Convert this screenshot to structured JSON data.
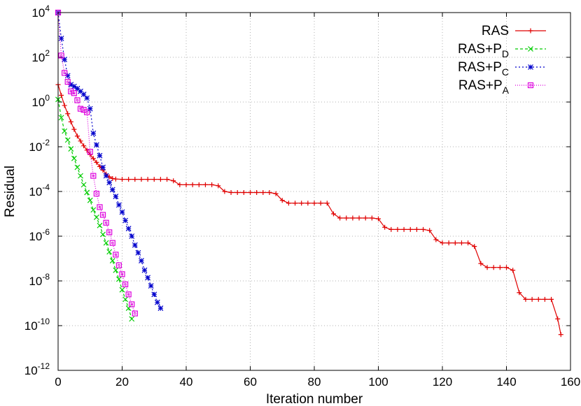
{
  "chart_data": {
    "type": "line",
    "title": "",
    "xlabel": "Iteration number",
    "ylabel": "Residual",
    "xlim": [
      0,
      160
    ],
    "ylim_log10": [
      -12,
      4
    ],
    "y_scale": "log",
    "grid": true,
    "legend_position": "top-right",
    "x_ticks": [
      "0",
      "20",
      "40",
      "60",
      "80",
      "100",
      "120",
      "140",
      "160"
    ],
    "y_ticks": [
      {
        "base": "10",
        "exp": "-12"
      },
      {
        "base": "10",
        "exp": "-10"
      },
      {
        "base": "10",
        "exp": "-8"
      },
      {
        "base": "10",
        "exp": "-6"
      },
      {
        "base": "10",
        "exp": "-4"
      },
      {
        "base": "10",
        "exp": "-2"
      },
      {
        "base": "10",
        "exp": "0"
      },
      {
        "base": "10",
        "exp": "2"
      },
      {
        "base": "10",
        "exp": "4"
      }
    ],
    "series": [
      {
        "name": "RAS",
        "name_sub": "",
        "color": "#e00000",
        "marker": "plus",
        "dash": "",
        "x": [
          0,
          1,
          2,
          3,
          4,
          5,
          6,
          7,
          8,
          9,
          10,
          11,
          12,
          13,
          14,
          15,
          16,
          17,
          18,
          20,
          22,
          24,
          26,
          28,
          30,
          32,
          34,
          36,
          38,
          40,
          42,
          44,
          46,
          48,
          50,
          52,
          54,
          56,
          58,
          60,
          62,
          64,
          66,
          68,
          70,
          72,
          74,
          76,
          78,
          80,
          82,
          84,
          86,
          88,
          90,
          92,
          94,
          96,
          98,
          100,
          102,
          104,
          106,
          108,
          110,
          112,
          114,
          116,
          118,
          120,
          122,
          124,
          126,
          128,
          130,
          132,
          134,
          136,
          138,
          140,
          142,
          144,
          146,
          148,
          150,
          152,
          154,
          156,
          157
        ],
        "y": [
          6,
          2,
          0.7,
          0.3,
          0.13,
          0.06,
          0.03,
          0.018,
          0.011,
          0.007,
          0.0045,
          0.003,
          0.002,
          0.0013,
          0.0009,
          0.0006,
          0.00045,
          0.00038,
          0.00036,
          0.00035,
          0.00035,
          0.00035,
          0.00035,
          0.00035,
          0.00035,
          0.00035,
          0.00035,
          0.0003,
          0.0002,
          0.0002,
          0.0002,
          0.0002,
          0.0002,
          0.0002,
          0.00018,
          0.0001,
          9e-05,
          9e-05,
          9e-05,
          9e-05,
          9e-05,
          9e-05,
          9e-05,
          8e-05,
          4e-05,
          3e-05,
          3e-05,
          3e-05,
          3e-05,
          3e-05,
          3e-05,
          3e-05,
          1e-05,
          6.5e-06,
          6.5e-06,
          6.5e-06,
          6.5e-06,
          6.5e-06,
          6.5e-06,
          6e-06,
          2.5e-06,
          2e-06,
          2e-06,
          2e-06,
          2e-06,
          2e-06,
          2e-06,
          1.8e-06,
          7e-07,
          5e-07,
          5e-07,
          5e-07,
          5e-07,
          5e-07,
          3.5e-07,
          6e-08,
          4e-08,
          4e-08,
          4e-08,
          4e-08,
          3e-08,
          3e-09,
          1.5e-09,
          1.5e-09,
          1.5e-09,
          1.5e-09,
          1.5e-09,
          2e-10,
          4e-11
        ]
      },
      {
        "name": "RAS+P",
        "name_sub": "D",
        "color": "#00cc00",
        "marker": "cross",
        "dash": "4,3",
        "x": [
          0,
          1,
          2,
          3,
          4,
          5,
          6,
          7,
          8,
          9,
          10,
          11,
          12,
          13,
          14,
          15,
          16,
          17,
          18,
          19,
          20,
          21,
          22,
          23
        ],
        "y": [
          1.3,
          0.2,
          0.05,
          0.02,
          0.008,
          0.003,
          0.0012,
          0.0005,
          0.0002,
          9e-05,
          4e-05,
          1.5e-05,
          7e-06,
          3e-06,
          1.2e-06,
          5e-07,
          2e-07,
          8e-08,
          3e-08,
          1.2e-08,
          4e-09,
          1.5e-09,
          6e-10,
          2e-10
        ]
      },
      {
        "name": "RAS+P",
        "name_sub": "C",
        "color": "#0000cc",
        "marker": "star",
        "dash": "2,3",
        "x": [
          0,
          1,
          2,
          3,
          4,
          5,
          6,
          7,
          8,
          9,
          10,
          11,
          12,
          13,
          14,
          15,
          16,
          17,
          18,
          19,
          20,
          21,
          22,
          23,
          24,
          25,
          26,
          27,
          28,
          29,
          30,
          31,
          32
        ],
        "y": [
          10000,
          700,
          80,
          15,
          6,
          5,
          4,
          3,
          2.2,
          1.5,
          0.5,
          0.04,
          0.012,
          0.004,
          0.0012,
          0.0005,
          0.00025,
          0.00012,
          6e-05,
          2.5e-05,
          1.2e-05,
          5e-06,
          2.2e-06,
          1e-06,
          4e-07,
          1.8e-07,
          8e-08,
          3e-08,
          1.4e-08,
          6e-09,
          2.5e-09,
          1.1e-09,
          6e-10
        ]
      },
      {
        "name": "RAS+P",
        "name_sub": "A",
        "color": "#dd00dd",
        "marker": "box",
        "dash": "1,2",
        "x": [
          0,
          1,
          2,
          3,
          4,
          5,
          6,
          7,
          8,
          9,
          10,
          11,
          12,
          13,
          14,
          15,
          16,
          17,
          18,
          19,
          20,
          21,
          22,
          23,
          24
        ],
        "y": [
          10000,
          120,
          20,
          8,
          3,
          2.5,
          1.2,
          0.5,
          0.45,
          0.35,
          0.006,
          0.0005,
          8e-05,
          2e-05,
          9e-06,
          4e-06,
          1.5e-06,
          5e-07,
          1.5e-07,
          5e-08,
          2e-08,
          7e-09,
          2.5e-09,
          9e-10,
          3.5e-10
        ]
      }
    ]
  }
}
